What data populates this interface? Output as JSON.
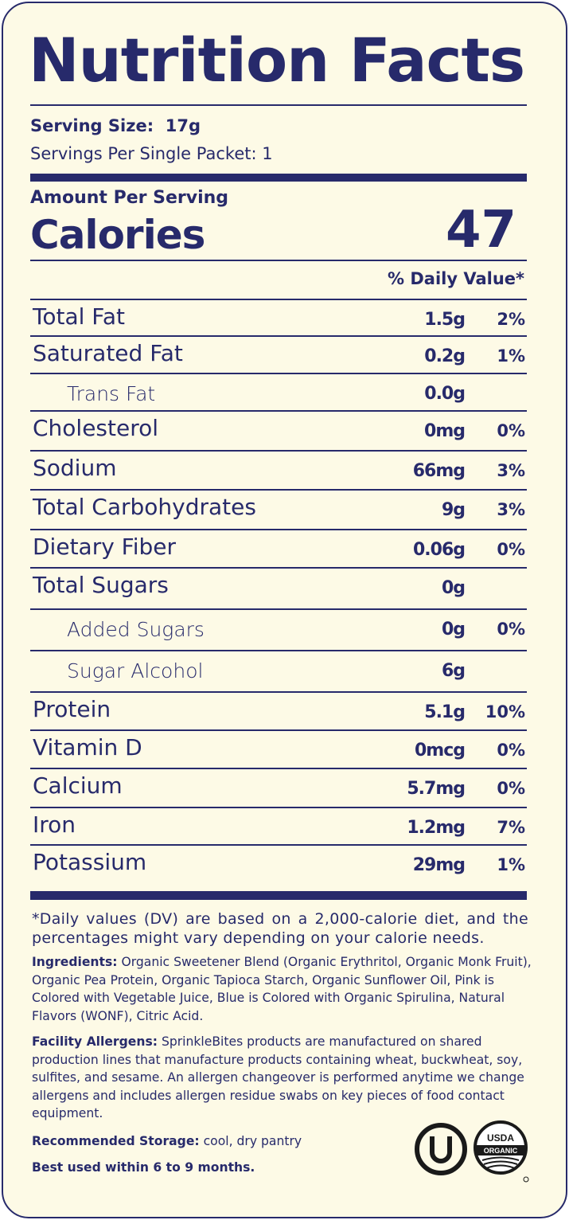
{
  "title": "Nutrition Facts",
  "serving_size_label": "Serving Size:",
  "serving_size_value": "17g",
  "servings_per_packet": "Servings Per Single Packet:  1",
  "amount_per_serving": "Amount Per Serving",
  "calories_label": "Calories",
  "calories_value": "47",
  "daily_value_header": "% Daily Value*",
  "nutrients": [
    {
      "name": "Total Fat",
      "amount": "1.5g",
      "dv": "2%"
    },
    {
      "name": "Saturated Fat",
      "amount": "0.2g",
      "dv": "1%"
    },
    {
      "name": "Trans Fat",
      "amount": "0.0g",
      "dv": ""
    },
    {
      "name": "Cholesterol",
      "amount": "0mg",
      "dv": "0%"
    },
    {
      "name": "Sodium",
      "amount": "66mg",
      "dv": "3%"
    },
    {
      "name": "Total Carbohydrates",
      "amount": "9g",
      "dv": "3%"
    },
    {
      "name": "Dietary Fiber",
      "amount": "0.06g",
      "dv": "0%"
    },
    {
      "name": "Total Sugars",
      "amount": "0g",
      "dv": ""
    },
    {
      "name": "Added Sugars",
      "amount": "0g",
      "dv": "0%"
    },
    {
      "name": "Sugar Alcohol",
      "amount": "6g",
      "dv": ""
    },
    {
      "name": "Protein",
      "amount": "5.1g",
      "dv": "10%"
    },
    {
      "name": "Vitamin D",
      "amount": "0mcg",
      "dv": "0%"
    },
    {
      "name": "Calcium",
      "amount": "5.7mg",
      "dv": "0%"
    },
    {
      "name": "Iron",
      "amount": "1.2mg",
      "dv": "7%"
    },
    {
      "name": "Potassium",
      "amount": "29mg",
      "dv": "1%"
    }
  ],
  "footnote": "*Daily values (DV) are based on a 2,000-calorie diet, and the percentages might vary depending on your calorie needs.",
  "ingredients_label": "Ingredients:",
  "ingredients_text": "Organic Sweetener Blend (Organic Erythritol, Organic Monk Fruit), Organic Pea Protein, Organic Tapioca Starch, Organic Sunflower Oil, Pink is Colored with Vegetable Juice, Blue is Colored with Organic Spirulina, Natural Flavors (WONF), Citric Acid.",
  "allergens_label": "Facility Allergens:",
  "allergens_text": "SprinkleBites products are manufactured on shared production lines that manufacture products containing wheat, buckwheat, soy, sulfites, and sesame.  An allergen changeover is performed anytime we change allergens and includes allergen residue swabs on key pieces of food contact equipment.",
  "storage_label": "Recommended Storage:",
  "storage_text": "cool, dry pantry",
  "best_used": "Best used within 6 to 9 months.",
  "usda_top": "USDA",
  "usda_banner": "ORGANIC",
  "colors": {
    "ink": "#272a6b",
    "paper": "#fdfae6"
  }
}
